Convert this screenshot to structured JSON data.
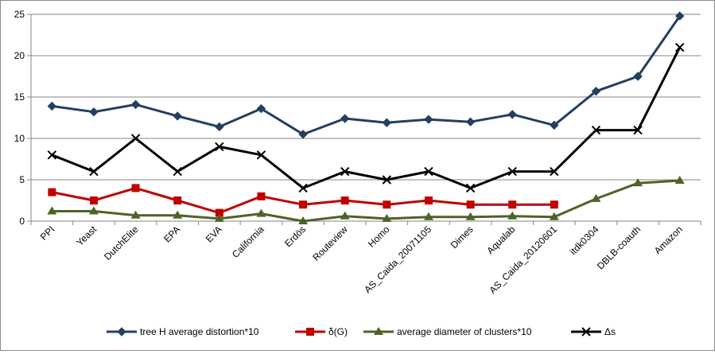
{
  "chart_data": {
    "type": "line",
    "title": "",
    "xlabel": "",
    "ylabel": "",
    "ylim": [
      0,
      25
    ],
    "yticks": [
      0,
      5,
      10,
      15,
      20,
      25
    ],
    "grid": true,
    "legend_position": "bottom",
    "categories": [
      "PPI",
      "Yeast",
      "DutchElite",
      "EPA",
      "EVA",
      "California",
      "Erdös",
      "Routeview",
      "Homo",
      "AS_Caida_20071105",
      "Dimes",
      "Aqualab",
      "AS_Caida_20120601",
      "itdk0304",
      "DBLB-coauth",
      "Amazon"
    ],
    "series": [
      {
        "name": "tree H average distortion*10",
        "color": "#243f60",
        "marker": "diamond",
        "values": [
          13.9,
          13.2,
          14.1,
          12.7,
          11.4,
          13.6,
          10.5,
          12.4,
          11.9,
          12.3,
          12.0,
          12.9,
          11.6,
          15.7,
          17.5,
          24.8
        ]
      },
      {
        "name": "δ(G)",
        "color": "#c00000",
        "marker": "square",
        "values": [
          3.5,
          2.5,
          4.0,
          2.5,
          1.0,
          3.0,
          2.0,
          2.5,
          2.0,
          2.5,
          2.0,
          2.0,
          2.0,
          null,
          null,
          null
        ]
      },
      {
        "name": "average diameter of clusters*10",
        "color": "#4f6228",
        "marker": "triangle",
        "values": [
          1.2,
          1.2,
          0.7,
          0.7,
          0.3,
          0.9,
          0.0,
          0.6,
          0.3,
          0.5,
          0.5,
          0.6,
          0.5,
          2.7,
          4.6,
          4.9
        ]
      },
      {
        "name": "Δs",
        "color": "#000000",
        "marker": "x",
        "values": [
          8,
          6,
          10,
          6,
          9,
          8,
          4,
          6,
          5,
          6,
          4,
          6,
          6,
          11,
          11,
          21
        ]
      }
    ]
  }
}
